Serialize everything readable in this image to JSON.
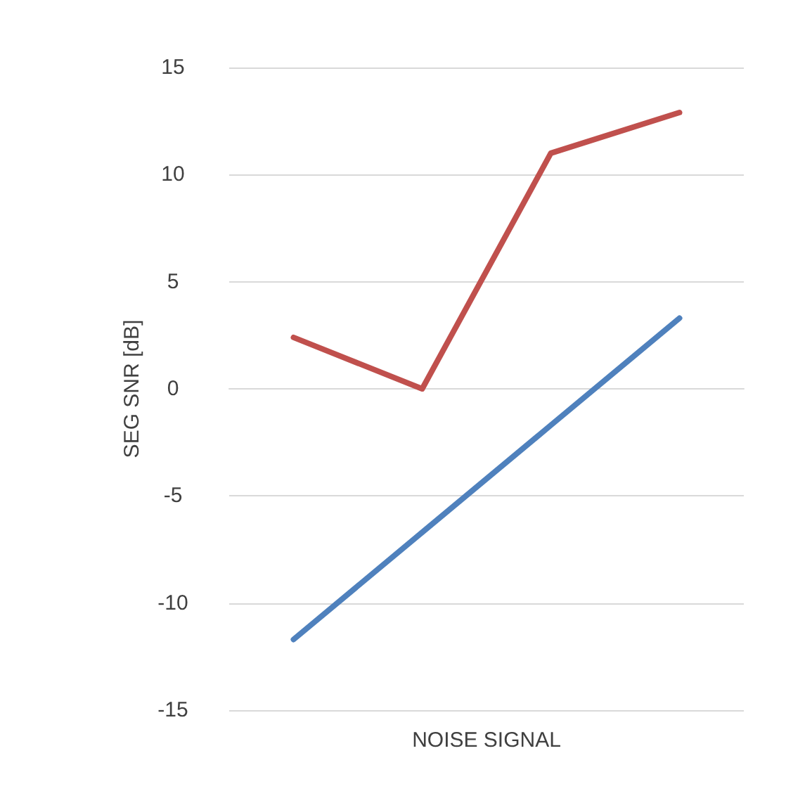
{
  "chart_data": {
    "type": "line",
    "xlabel": "NOISE SIGNAL",
    "ylabel": "SEG SNR [dB]",
    "categories": [
      null,
      null,
      null,
      null
    ],
    "series": [
      {
        "color": "#4f81bd",
        "values": [
          -11.7,
          -6.7,
          -1.7,
          3.3
        ]
      },
      {
        "color": "#c0504d",
        "values": [
          2.4,
          0,
          11.0,
          12.9
        ]
      }
    ],
    "ylim": [
      -15,
      15
    ],
    "yticks": [
      -15,
      -10,
      -5,
      0,
      5,
      10,
      15
    ],
    "grid": "y",
    "marker": "none",
    "line_style": "solid"
  }
}
